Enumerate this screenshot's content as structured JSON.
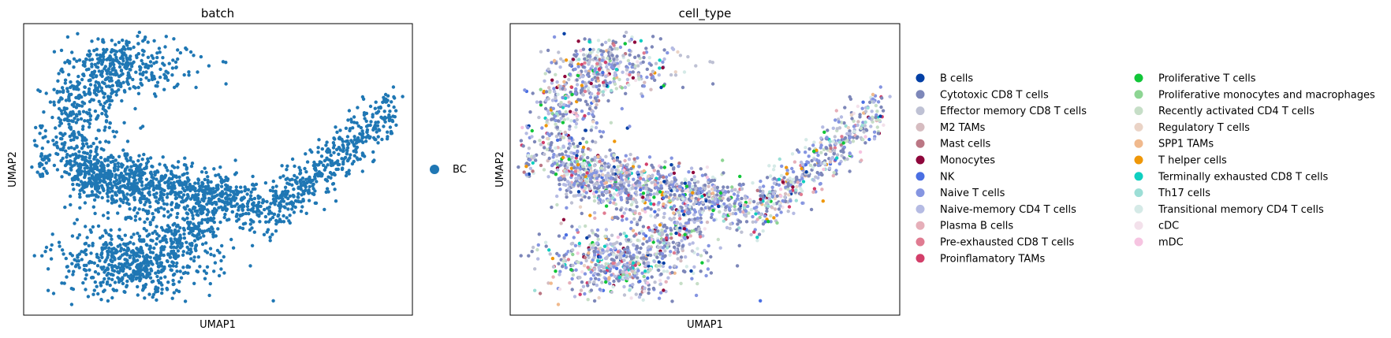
{
  "chart_data": [
    {
      "type": "scatter",
      "title": "batch",
      "xlabel": "UMAP1",
      "ylabel": "UMAP2",
      "x_ticks": "none",
      "y_ticks": "none",
      "legend": {
        "placement": "right",
        "entries": [
          {
            "label": "BC",
            "color": "#1f77b4"
          }
        ]
      },
      "point_color": "#1f77b4",
      "approx_points": 2500,
      "clusters": [
        {
          "name_hint": "upper-left arc",
          "points": 700
        },
        {
          "name_hint": "central band",
          "points": 650
        },
        {
          "name_hint": "right arm",
          "points": 450
        },
        {
          "name_hint": "lower-left lobe",
          "points": 550
        },
        {
          "name_hint": "far-left outliers",
          "points": 25
        }
      ]
    },
    {
      "type": "scatter",
      "title": "cell_type",
      "xlabel": "UMAP1",
      "ylabel": "UMAP2",
      "x_ticks": "none",
      "y_ticks": "none",
      "legend": {
        "placement": "right, two columns",
        "entries": [
          {
            "label": "B cells",
            "color": "#023fa5"
          },
          {
            "label": "Cytotoxic CD8 T cells",
            "color": "#7d87b9"
          },
          {
            "label": "Effector memory CD8 T cells",
            "color": "#bec1d4"
          },
          {
            "label": "M2 TAMs",
            "color": "#d6bcc0"
          },
          {
            "label": "Mast cells",
            "color": "#bb7784"
          },
          {
            "label": "Monocytes",
            "color": "#8e063b"
          },
          {
            "label": "NK",
            "color": "#4a6fe3"
          },
          {
            "label": "Naive T cells",
            "color": "#8595e1"
          },
          {
            "label": "Naive-memory CD4 T cells",
            "color": "#b5bbe3"
          },
          {
            "label": "Plasma B cells",
            "color": "#e6afb9"
          },
          {
            "label": "Pre-exhausted CD8 T cells",
            "color": "#e07b91"
          },
          {
            "label": "Proinflamatory TAMs",
            "color": "#d33f6a"
          },
          {
            "label": "Proliferative T cells",
            "color": "#11c638"
          },
          {
            "label": "Proliferative monocytes and macrophages",
            "color": "#8dd593"
          },
          {
            "label": "Recently activated CD4 T cells",
            "color": "#c6dec7"
          },
          {
            "label": "Regulatory T cells",
            "color": "#ead3c6"
          },
          {
            "label": "SPP1 TAMs",
            "color": "#f0b98d"
          },
          {
            "label": "T helper cells",
            "color": "#ef9708"
          },
          {
            "label": "Terminally exhausted CD8 T cells",
            "color": "#0fcfc0"
          },
          {
            "label": "Th17 cells",
            "color": "#9cded6"
          },
          {
            "label": "Transitional memory CD4 T cells",
            "color": "#d5eae7"
          },
          {
            "label": "cDC",
            "color": "#f3e1eb"
          },
          {
            "label": "mDC",
            "color": "#f6c4e1"
          }
        ]
      },
      "approx_points": 2500,
      "dominant_types": [
        "Cytotoxic CD8 T cells",
        "Naive T cells",
        "Effector memory CD8 T cells",
        "Naive-memory CD4 T cells"
      ]
    }
  ]
}
